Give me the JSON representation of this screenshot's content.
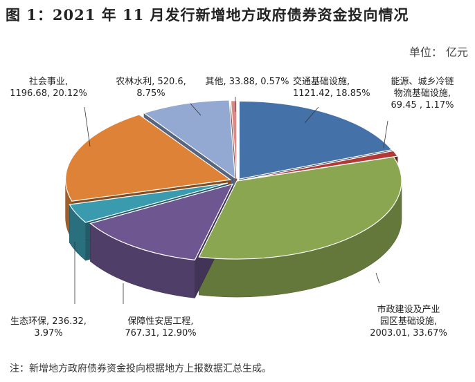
{
  "title": "图 1：2021 年 11 月发行新增地方政府债券资金投向情况",
  "unit_label": "单位：  亿元",
  "note": "注：新增地方政府债券资金投向根据地方上报数据汇总生成。",
  "chart_data": {
    "type": "pie",
    "unit": "亿元",
    "slices": [
      {
        "name": "交通基础设施",
        "value": 1121.42,
        "percent": 18.85,
        "color": "#4472a8",
        "label_lines": [
          "交通基础设施,",
          "1121.42, 18.85%"
        ]
      },
      {
        "name": "能源、城乡冷链物流基础设施",
        "value": 69.45,
        "percent": 1.17,
        "color": "#b23a36",
        "label_lines": [
          "能源、城乡冷链",
          "物流基础设施,",
          "69.45 , 1.17%"
        ]
      },
      {
        "name": "市政建设及产业园区基础设施",
        "value": 2003.01,
        "percent": 33.67,
        "color": "#8aa651",
        "label_lines": [
          "市政建设及产业",
          "园区基础设施,",
          "2003.01, 33.67%"
        ]
      },
      {
        "name": "保障性安居工程",
        "value": 767.31,
        "percent": 12.9,
        "color": "#6e5690",
        "label_lines": [
          "保障性安居工程,",
          "767.31, 12.90%"
        ]
      },
      {
        "name": "生态环保",
        "value": 236.32,
        "percent": 3.97,
        "color": "#3a9aae",
        "label_lines": [
          "生态环保, 236.32,",
          "3.97%"
        ]
      },
      {
        "name": "社会事业",
        "value": 1196.68,
        "percent": 20.12,
        "color": "#dd8237",
        "label_lines": [
          "社会事业,",
          "1196.68, 20.12%"
        ]
      },
      {
        "name": "农林水利",
        "value": 520.6,
        "percent": 8.75,
        "color": "#93a9d2",
        "label_lines": [
          "农林水利, 520.6,",
          "8.75%"
        ]
      },
      {
        "name": "其他",
        "value": 33.88,
        "percent": 0.57,
        "color": "#d98a86",
        "label_lines": [
          "其他, 33.88, 0.57%"
        ]
      }
    ]
  }
}
